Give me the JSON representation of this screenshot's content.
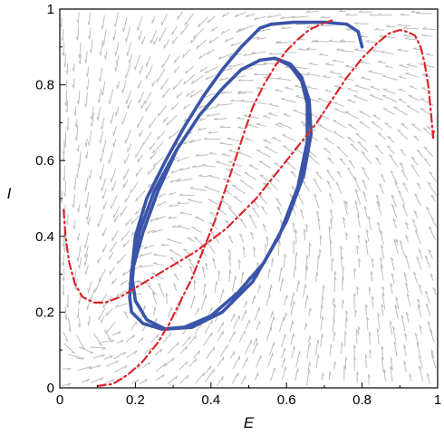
{
  "chart_data": {
    "type": "line",
    "title": "",
    "xlabel": "E",
    "ylabel": "I",
    "xlim": [
      0,
      1
    ],
    "ylim": [
      0,
      1
    ],
    "xticks": [
      "0",
      "0.2",
      "0.4",
      "0.6",
      "0.8",
      "1"
    ],
    "yticks": [
      "0",
      "0.2",
      "0.4",
      "0.6",
      "0.8",
      "1"
    ],
    "grid": false,
    "legend": "none",
    "colors": {
      "trajectory": "#3a54a8",
      "nullcline": "#d9262b",
      "vector_field": "#bdbdbd",
      "axes": "#000000"
    },
    "series": [
      {
        "style": "solid",
        "color": "#3a54a8",
        "x": [
          0.8,
          0.79,
          0.76,
          0.7,
          0.62,
          0.56,
          0.53,
          0.48,
          0.43,
          0.38,
          0.33,
          0.28,
          0.23,
          0.2,
          0.19,
          0.2,
          0.23,
          0.28,
          0.35,
          0.43,
          0.51,
          0.58,
          0.63,
          0.655,
          0.655,
          0.64,
          0.61,
          0.57,
          0.53,
          0.48,
          0.43,
          0.37,
          0.31,
          0.25,
          0.21,
          0.19,
          0.185,
          0.19,
          0.22,
          0.27,
          0.33,
          0.4,
          0.47,
          0.54,
          0.6,
          0.645,
          0.665,
          0.66,
          0.64,
          0.61,
          0.57,
          0.53,
          0.48,
          0.43,
          0.37,
          0.31,
          0.26,
          0.22,
          0.195,
          0.19
        ],
        "y": [
          0.9,
          0.94,
          0.96,
          0.965,
          0.965,
          0.96,
          0.95,
          0.9,
          0.84,
          0.77,
          0.69,
          0.6,
          0.5,
          0.4,
          0.3,
          0.23,
          0.18,
          0.155,
          0.16,
          0.2,
          0.28,
          0.4,
          0.53,
          0.65,
          0.75,
          0.81,
          0.85,
          0.87,
          0.865,
          0.84,
          0.79,
          0.72,
          0.63,
          0.52,
          0.41,
          0.31,
          0.24,
          0.2,
          0.17,
          0.155,
          0.16,
          0.19,
          0.25,
          0.33,
          0.44,
          0.56,
          0.67,
          0.76,
          0.82,
          0.855,
          0.87,
          0.865,
          0.84,
          0.79,
          0.72,
          0.63,
          0.52,
          0.41,
          0.32,
          0.26
        ]
      },
      {
        "style": "dash-dot",
        "color": "#d9262b",
        "x": [
          0.01,
          0.015,
          0.025,
          0.04,
          0.06,
          0.09,
          0.12,
          0.16,
          0.21,
          0.26,
          0.31,
          0.36,
          0.4,
          0.44,
          0.48,
          0.52,
          0.56,
          0.6,
          0.64,
          0.68,
          0.72,
          0.76,
          0.8,
          0.84,
          0.87,
          0.9,
          0.92,
          0.94,
          0.955,
          0.965,
          0.975,
          0.982,
          0.988,
          0.99
        ],
        "y": [
          0.47,
          0.4,
          0.33,
          0.275,
          0.24,
          0.225,
          0.225,
          0.24,
          0.27,
          0.3,
          0.33,
          0.36,
          0.39,
          0.42,
          0.46,
          0.5,
          0.55,
          0.6,
          0.65,
          0.7,
          0.76,
          0.82,
          0.87,
          0.91,
          0.935,
          0.945,
          0.94,
          0.93,
          0.9,
          0.86,
          0.8,
          0.73,
          0.66,
          0.68
        ]
      },
      {
        "style": "dash-dot",
        "color": "#d9262b",
        "x": [
          0.1,
          0.14,
          0.18,
          0.22,
          0.26,
          0.29,
          0.32,
          0.35,
          0.37,
          0.39,
          0.41,
          0.43,
          0.45,
          0.47,
          0.49,
          0.51,
          0.54,
          0.57,
          0.6,
          0.63,
          0.66,
          0.69,
          0.72
        ],
        "y": [
          0.005,
          0.01,
          0.035,
          0.07,
          0.12,
          0.17,
          0.23,
          0.29,
          0.34,
          0.39,
          0.44,
          0.5,
          0.56,
          0.62,
          0.68,
          0.74,
          0.8,
          0.85,
          0.89,
          0.92,
          0.945,
          0.96,
          0.97
        ]
      }
    ]
  }
}
